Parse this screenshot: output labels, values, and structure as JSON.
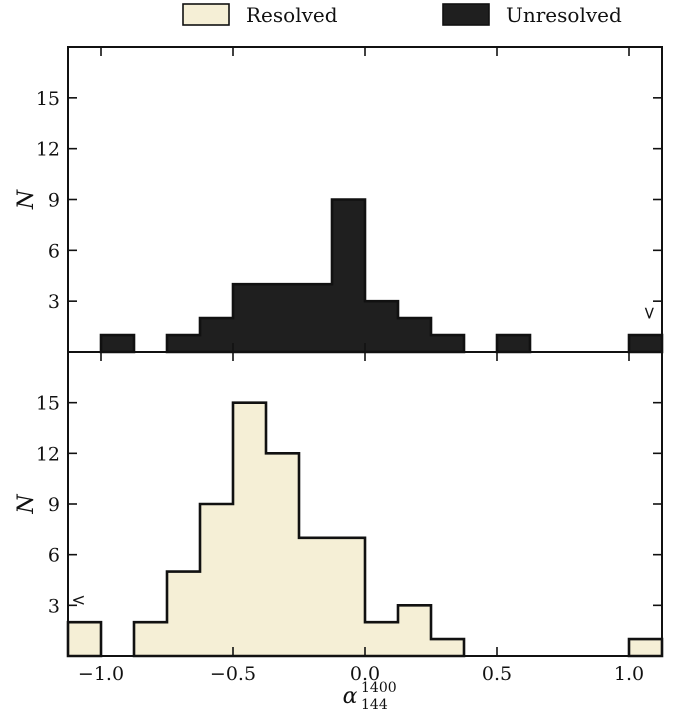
{
  "chart_data": {
    "type": "bar",
    "legend": {
      "placement": "top",
      "items": [
        {
          "label": "Resolved",
          "color": "#f5efd6"
        },
        {
          "label": "Unresolved",
          "color": "#1f1f1f"
        }
      ]
    },
    "panels": [
      {
        "id": "top",
        "series": "Unresolved",
        "color": "#1f1f1f",
        "ylabel": "N",
        "ylim": [
          0,
          18
        ],
        "yticks": [
          3,
          6,
          9,
          12,
          15
        ],
        "bins": [
          {
            "x0": -1.0,
            "x1": -0.875,
            "value": 1
          },
          {
            "x0": -0.75,
            "x1": -0.625,
            "value": 1
          },
          {
            "x0": -0.625,
            "x1": -0.5,
            "value": 2
          },
          {
            "x0": -0.5,
            "x1": -0.375,
            "value": 4
          },
          {
            "x0": -0.375,
            "x1": -0.25,
            "value": 4
          },
          {
            "x0": -0.25,
            "x1": -0.125,
            "value": 4
          },
          {
            "x0": -0.125,
            "x1": 0.0,
            "value": 9
          },
          {
            "x0": 0.0,
            "x1": 0.125,
            "value": 3
          },
          {
            "x0": 0.125,
            "x1": 0.25,
            "value": 2
          },
          {
            "x0": 0.25,
            "x1": 0.375,
            "value": 1
          },
          {
            "x0": 0.5,
            "x1": 0.625,
            "value": 1
          },
          {
            "x0": 1.0,
            "x1": 1.125,
            "value": 1
          }
        ],
        "marker": {
          "text": ">",
          "x": 1.075,
          "y": 2.0
        }
      },
      {
        "id": "bottom",
        "series": "Resolved",
        "color": "#f5efd6",
        "ylabel": "N",
        "ylim": [
          0,
          18
        ],
        "yticks": [
          3,
          6,
          9,
          12,
          15
        ],
        "bins": [
          {
            "x0": -1.125,
            "x1": -1.0,
            "value": 2
          },
          {
            "x0": -0.875,
            "x1": -0.75,
            "value": 2
          },
          {
            "x0": -0.75,
            "x1": -0.625,
            "value": 5
          },
          {
            "x0": -0.625,
            "x1": -0.5,
            "value": 9
          },
          {
            "x0": -0.5,
            "x1": -0.375,
            "value": 15
          },
          {
            "x0": -0.375,
            "x1": -0.25,
            "value": 12
          },
          {
            "x0": -0.25,
            "x1": -0.125,
            "value": 7
          },
          {
            "x0": -0.125,
            "x1": 0.0,
            "value": 7
          },
          {
            "x0": 0.0,
            "x1": 0.125,
            "value": 2
          },
          {
            "x0": 0.125,
            "x1": 0.25,
            "value": 3
          },
          {
            "x0": 0.25,
            "x1": 0.375,
            "value": 1
          },
          {
            "x0": 1.0,
            "x1": 1.125,
            "value": 1
          }
        ],
        "marker": {
          "text": "<",
          "x": -1.085,
          "y": 3.0
        }
      }
    ],
    "xlim": [
      -1.125,
      1.125
    ],
    "xticks": [
      -1.0,
      -0.5,
      0.0,
      0.5,
      1.0
    ],
    "xtick_labels": [
      "−1.0",
      "−0.5",
      "0.0",
      "0.5",
      "1.0"
    ],
    "xlabel": {
      "base": "α",
      "sup": "1400",
      "sub": "144"
    },
    "grid": false
  }
}
